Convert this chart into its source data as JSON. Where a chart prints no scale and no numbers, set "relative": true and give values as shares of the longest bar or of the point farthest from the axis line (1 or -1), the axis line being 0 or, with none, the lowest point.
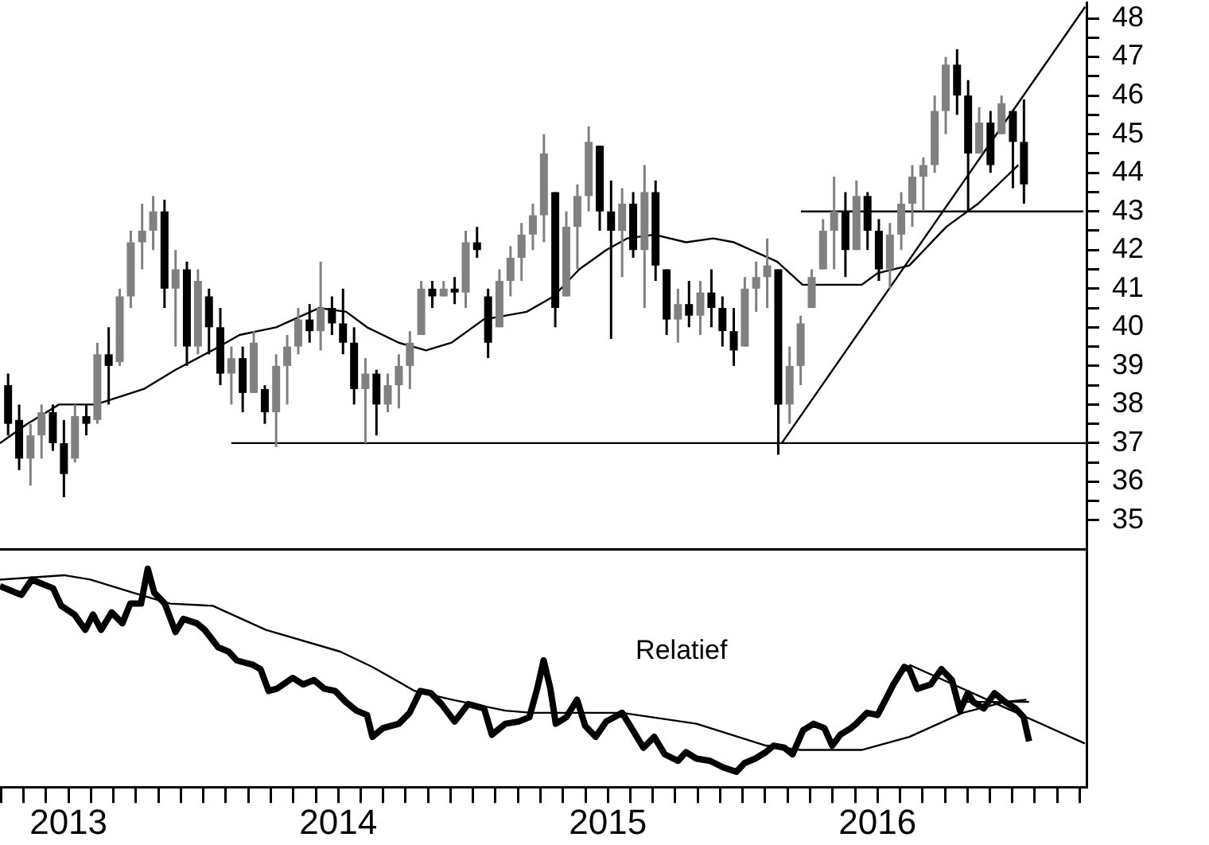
{
  "chart_data": [
    {
      "type": "candlestick",
      "tick_labels": "y",
      "xlim": [
        2012.746,
        2016.775
      ],
      "ylim": [
        34.25,
        48.4
      ],
      "yticks": [
        35,
        {
          "value": 35.5,
          "label": null
        },
        36,
        {
          "value": 36.5,
          "label": null
        },
        37,
        {
          "value": 37.5,
          "label": null
        },
        38,
        {
          "value": 38.5,
          "label": null
        },
        39,
        {
          "value": 39.5,
          "label": null
        },
        40,
        {
          "value": 40.5,
          "label": null
        },
        41,
        {
          "value": 41.5,
          "label": null
        },
        42,
        {
          "value": 42.5,
          "label": null
        },
        43,
        {
          "value": 43.5,
          "label": null
        },
        44,
        {
          "value": 44.5,
          "label": null
        },
        45,
        {
          "value": 45.5,
          "label": null
        },
        46,
        {
          "value": 46.5,
          "label": null
        },
        47,
        {
          "value": 47.5,
          "label": null
        },
        48
      ],
      "colors": [
        "#000000",
        "#000000",
        "#808080",
        "#808080",
        "#000000",
        "#000000",
        "#808080",
        "#000000",
        "#808080",
        "#000000",
        "#808080",
        "#808080",
        "#808080",
        "#808080",
        "#000000",
        "#808080",
        "#000000",
        "#808080",
        "#000000",
        "#000000",
        "#808080",
        "#000000",
        "#808080",
        "#000000",
        "#808080",
        "#808080",
        "#808080",
        "#000000",
        "#808080",
        "#000000",
        "#000000",
        "#000000",
        "#808080",
        "#000000",
        "#808080",
        "#808080",
        "#808080",
        "#808080",
        "#000000",
        "#808080",
        "#000000",
        "#808080",
        "#000000",
        "#000000",
        "#808080",
        "#808080",
        "#808080",
        "#808080",
        "#808080",
        "#000000",
        "#808080",
        "#808080",
        "#808080",
        "#000000",
        "#000000",
        "#808080",
        "#000000",
        "#808080",
        "#000000",
        "#000000",
        "#808080",
        "#000000",
        "#808080",
        "#000000",
        "#000000",
        "#000000",
        "#808080",
        "#808080",
        "#808080",
        "#000000",
        "#808080",
        "#808080",
        "#808080",
        "#808080",
        "#808080",
        "#000000",
        "#808080",
        "#000000",
        "#000000",
        "#808080",
        "#808080",
        "#808080",
        "#808080",
        "#808080",
        "#808080",
        "#000000",
        "#000000",
        "#808080",
        "#000000",
        "#808080",
        "#000000",
        "#000000"
      ],
      "x": [
        2012.776,
        2012.817,
        2012.859,
        2012.9,
        2012.942,
        2012.983,
        2013.024,
        2013.066,
        2013.107,
        2013.149,
        2013.19,
        2013.231,
        2013.273,
        2013.314,
        2013.356,
        2013.397,
        2013.439,
        2013.48,
        2013.521,
        2013.563,
        2013.604,
        2013.646,
        2013.687,
        2013.728,
        2013.77,
        2013.811,
        2013.852,
        2013.894,
        2013.935,
        2013.977,
        2014.018,
        2014.059,
        2014.101,
        2014.142,
        2014.184,
        2014.225,
        2014.266,
        2014.308,
        2014.349,
        2014.391,
        2014.432,
        2014.473,
        2014.515,
        2014.556,
        2014.598,
        2014.639,
        2014.68,
        2014.722,
        2014.763,
        2014.805,
        2014.846,
        2014.887,
        2014.929,
        2014.97,
        2015.012,
        2015.053,
        2015.094,
        2015.136,
        2015.177,
        2015.218,
        2015.26,
        2015.301,
        2015.343,
        2015.384,
        2015.425,
        2015.467,
        2015.508,
        2015.55,
        2015.591,
        2015.632,
        2015.674,
        2015.715,
        2015.756,
        2015.798,
        2015.839,
        2015.881,
        2015.922,
        2015.963,
        2016.005,
        2016.046,
        2016.088,
        2016.129,
        2016.17,
        2016.212,
        2016.253,
        2016.295,
        2016.336,
        2016.377,
        2016.419,
        2016.46,
        2016.502,
        2016.543
      ],
      "ohlc": [
        [
          38.5,
          38.8,
          37.2,
          37.5
        ],
        [
          37.6,
          38.0,
          36.3,
          36.6
        ],
        [
          36.6,
          37.5,
          35.9,
          37.2
        ],
        [
          37.2,
          38.0,
          36.6,
          37.8
        ],
        [
          37.8,
          38.0,
          36.8,
          37.0
        ],
        [
          37.0,
          37.6,
          35.6,
          36.2
        ],
        [
          36.6,
          38.0,
          36.5,
          37.7
        ],
        [
          37.7,
          38.0,
          37.2,
          37.5
        ],
        [
          37.6,
          39.6,
          37.5,
          39.3
        ],
        [
          39.3,
          40.0,
          38.0,
          39.0
        ],
        [
          39.1,
          41.0,
          39.0,
          40.8
        ],
        [
          40.8,
          42.5,
          40.5,
          42.2
        ],
        [
          42.2,
          43.2,
          41.5,
          42.5
        ],
        [
          42.5,
          43.4,
          42.0,
          43.0
        ],
        [
          43.0,
          43.3,
          40.5,
          41.0
        ],
        [
          41.0,
          42.0,
          39.5,
          41.5
        ],
        [
          41.5,
          41.7,
          39.0,
          39.5
        ],
        [
          39.5,
          41.5,
          39.3,
          41.2
        ],
        [
          40.8,
          41.0,
          39.3,
          40.0
        ],
        [
          40.0,
          40.5,
          38.5,
          38.8
        ],
        [
          38.8,
          39.5,
          38.0,
          39.2
        ],
        [
          39.2,
          39.5,
          37.8,
          38.3
        ],
        [
          38.3,
          39.9,
          38.3,
          39.6
        ],
        [
          38.4,
          38.5,
          37.5,
          37.8
        ],
        [
          37.8,
          39.3,
          36.9,
          39.0
        ],
        [
          39.0,
          39.8,
          38.0,
          39.5
        ],
        [
          39.5,
          40.5,
          39.3,
          40.2
        ],
        [
          40.2,
          40.6,
          39.6,
          39.9
        ],
        [
          39.9,
          41.7,
          39.4,
          40.5
        ],
        [
          40.5,
          40.8,
          39.8,
          40.1
        ],
        [
          40.1,
          41.0,
          39.3,
          39.6
        ],
        [
          39.6,
          40.0,
          38.0,
          38.4
        ],
        [
          38.4,
          39.2,
          37.0,
          38.8
        ],
        [
          38.8,
          38.9,
          37.2,
          38.0
        ],
        [
          38.0,
          38.8,
          37.8,
          38.5
        ],
        [
          38.5,
          39.3,
          37.9,
          39.0
        ],
        [
          39.0,
          39.9,
          38.4,
          39.6
        ],
        [
          39.8,
          41.2,
          39.8,
          41.0
        ],
        [
          41.0,
          41.2,
          40.5,
          40.8
        ],
        [
          40.8,
          41.2,
          40.8,
          41.0
        ],
        [
          41.0,
          41.3,
          40.6,
          40.9
        ],
        [
          40.9,
          42.5,
          40.5,
          42.2
        ],
        [
          42.2,
          42.6,
          41.8,
          42.0
        ],
        [
          40.8,
          41.0,
          39.2,
          39.6
        ],
        [
          40.0,
          41.5,
          40.0,
          41.2
        ],
        [
          41.2,
          42.1,
          40.8,
          41.8
        ],
        [
          41.8,
          42.7,
          41.2,
          42.4
        ],
        [
          42.4,
          43.2,
          42.0,
          42.9
        ],
        [
          42.9,
          45.0,
          42.2,
          44.5
        ],
        [
          43.5,
          43.5,
          40.0,
          40.5
        ],
        [
          40.8,
          43.0,
          40.8,
          42.6
        ],
        [
          42.6,
          43.7,
          41.5,
          43.4
        ],
        [
          43.4,
          45.2,
          43.0,
          44.8
        ],
        [
          44.7,
          44.7,
          42.5,
          43.0
        ],
        [
          43.0,
          43.8,
          39.7,
          42.5
        ],
        [
          42.5,
          43.6,
          41.3,
          43.2
        ],
        [
          43.2,
          43.5,
          41.8,
          42.0
        ],
        [
          42.0,
          44.2,
          40.5,
          43.5
        ],
        [
          43.5,
          43.8,
          41.2,
          41.6
        ],
        [
          41.5,
          41.5,
          39.8,
          40.2
        ],
        [
          40.2,
          41.0,
          39.6,
          40.6
        ],
        [
          40.6,
          41.2,
          40.0,
          40.3
        ],
        [
          40.3,
          41.2,
          39.8,
          40.9
        ],
        [
          40.9,
          41.5,
          40.0,
          40.5
        ],
        [
          40.5,
          40.8,
          39.5,
          39.9
        ],
        [
          39.9,
          40.5,
          39.0,
          39.4
        ],
        [
          39.5,
          41.3,
          39.5,
          41.0
        ],
        [
          41.0,
          41.7,
          40.4,
          41.3
        ],
        [
          41.3,
          42.3,
          40.5,
          41.6
        ],
        [
          41.5,
          41.5,
          36.7,
          38.0
        ],
        [
          38.0,
          39.5,
          37.5,
          39.0
        ],
        [
          39.0,
          40.3,
          38.5,
          40.1
        ],
        [
          40.5,
          41.5,
          40.5,
          41.3
        ],
        [
          41.5,
          42.8,
          41.5,
          42.5
        ],
        [
          42.5,
          43.9,
          41.5,
          43.0
        ],
        [
          43.0,
          43.5,
          41.3,
          42.0
        ],
        [
          42.0,
          43.8,
          42.0,
          43.4
        ],
        [
          43.4,
          43.5,
          42.0,
          42.5
        ],
        [
          42.5,
          42.8,
          41.2,
          41.5
        ],
        [
          41.5,
          42.7,
          41.0,
          42.4
        ],
        [
          42.4,
          43.5,
          42.0,
          43.2
        ],
        [
          43.2,
          44.2,
          42.6,
          43.9
        ],
        [
          43.9,
          44.4,
          43.0,
          44.2
        ],
        [
          44.2,
          46.0,
          44.0,
          45.6
        ],
        [
          45.6,
          47.0,
          45.0,
          46.8
        ],
        [
          46.8,
          47.2,
          45.5,
          46.0
        ],
        [
          46.0,
          46.4,
          43.0,
          44.5
        ],
        [
          44.5,
          45.7,
          44.5,
          45.3
        ],
        [
          45.3,
          45.6,
          44.0,
          44.2
        ],
        [
          45.0,
          46.0,
          45.0,
          45.8
        ],
        [
          45.6,
          45.6,
          43.6,
          44.8
        ],
        [
          44.8,
          45.9,
          43.2,
          43.7
        ]
      ],
      "series": [
        {
          "type": "line",
          "color": "#000000",
          "x": [
            2012.746,
            2012.847,
            2012.965,
            2013.101,
            2013.279,
            2013.397,
            2013.533,
            2013.634,
            2013.77,
            2013.929,
            2014.03,
            2014.107,
            2014.225,
            2014.326,
            2014.42,
            2014.539,
            2014.699,
            2014.799,
            2014.894,
            2014.994,
            2015.071,
            2015.172,
            2015.29,
            2015.391,
            2015.468,
            2015.628,
            2015.722,
            2015.823,
            2015.941,
            2016.0,
            2016.118,
            2016.255,
            2016.373,
            2016.522
          ],
          "values": [
            37.0,
            37.5,
            38.0,
            38.0,
            38.4,
            38.9,
            39.4,
            39.8,
            40.0,
            40.5,
            40.4,
            40.0,
            39.6,
            39.4,
            39.6,
            40.2,
            40.4,
            40.8,
            41.5,
            42.0,
            42.3,
            42.4,
            42.2,
            42.3,
            42.2,
            41.7,
            41.1,
            41.1,
            41.1,
            41.4,
            41.6,
            42.6,
            43.2,
            44.2
          ]
        },
        {
          "type": "line",
          "color": "#000000",
          "x": [
            2015.645,
            2016.77
          ],
          "values": [
            37.0,
            48.3
          ]
        },
        {
          "type": "line",
          "color": "#000000",
          "x": [
            2013.604,
            2016.775
          ],
          "values": [
            37,
            37
          ]
        },
        {
          "type": "line",
          "color": "#000000",
          "x": [
            2015.716,
            2016.763
          ],
          "values": [
            43,
            43
          ]
        }
      ]
    },
    {
      "type": "line",
      "relative": true,
      "tick_labels": "x",
      "xlim": [
        2012.746,
        2016.775
      ],
      "xticks": [
        {
          "value": 2012.75,
          "label": null
        },
        {
          "value": 2012.833,
          "label": null
        },
        {
          "value": 2012.917,
          "label": null
        },
        2013,
        {
          "value": 2013.083,
          "label": null
        },
        {
          "value": 2013.167,
          "label": null
        },
        {
          "value": 2013.25,
          "label": null
        },
        {
          "value": 2013.333,
          "label": null
        },
        {
          "value": 2013.417,
          "label": null
        },
        {
          "value": 2013.5,
          "label": null
        },
        {
          "value": 2013.583,
          "label": null
        },
        {
          "value": 2013.667,
          "label": null
        },
        {
          "value": 2013.75,
          "label": null
        },
        {
          "value": 2013.833,
          "label": null
        },
        {
          "value": 2013.917,
          "label": null
        },
        2014,
        {
          "value": 2014.083,
          "label": null
        },
        {
          "value": 2014.167,
          "label": null
        },
        {
          "value": 2014.25,
          "label": null
        },
        {
          "value": 2014.333,
          "label": null
        },
        {
          "value": 2014.417,
          "label": null
        },
        {
          "value": 2014.5,
          "label": null
        },
        {
          "value": 2014.583,
          "label": null
        },
        {
          "value": 2014.667,
          "label": null
        },
        {
          "value": 2014.75,
          "label": null
        },
        {
          "value": 2014.833,
          "label": null
        },
        {
          "value": 2014.917,
          "label": null
        },
        2015,
        {
          "value": 2015.083,
          "label": null
        },
        {
          "value": 2015.167,
          "label": null
        },
        {
          "value": 2015.25,
          "label": null
        },
        {
          "value": 2015.333,
          "label": null
        },
        {
          "value": 2015.417,
          "label": null
        },
        {
          "value": 2015.5,
          "label": null
        },
        {
          "value": 2015.583,
          "label": null
        },
        {
          "value": 2015.667,
          "label": null
        },
        {
          "value": 2015.75,
          "label": null
        },
        {
          "value": 2015.833,
          "label": null
        },
        {
          "value": 2015.917,
          "label": null
        },
        2016,
        {
          "value": 2016.083,
          "label": null
        },
        {
          "value": 2016.167,
          "label": null
        },
        {
          "value": 2016.25,
          "label": null
        },
        {
          "value": 2016.333,
          "label": null
        },
        {
          "value": 2016.417,
          "label": null
        },
        {
          "value": 2016.5,
          "label": null
        },
        {
          "value": 2016.583,
          "label": null
        },
        {
          "value": 2016.667,
          "label": null
        },
        {
          "value": 2016.75,
          "label": null
        }
      ],
      "annotations": [
        "Relatief"
      ],
      "series": [
        {
          "color": "#000000",
          "x": [
            2012.746,
            2012.785,
            2012.825,
            2012.864,
            2012.943,
            2012.973,
            2013.022,
            2013.062,
            2013.091,
            2013.121,
            2013.16,
            2013.2,
            2013.229,
            2013.269,
            2013.294,
            2013.318,
            2013.357,
            2013.397,
            2013.426,
            2013.476,
            2013.505,
            2013.555,
            2013.594,
            2013.624,
            2013.653,
            2013.683,
            2013.712,
            2013.742,
            2013.772,
            2013.831,
            2013.87,
            2013.91,
            2013.949,
            2013.989,
            2014.028,
            2014.068,
            2014.107,
            2014.127,
            2014.166,
            2014.225,
            2014.265,
            2014.304,
            2014.344,
            2014.383,
            2014.432,
            2014.482,
            2014.541,
            2014.57,
            2014.62,
            2014.669,
            2014.709,
            2014.738,
            2014.762,
            2014.787,
            2014.807,
            2014.846,
            2014.886,
            2014.916,
            2014.955,
            2014.994,
            2015.053,
            2015.093,
            2015.132,
            2015.172,
            2015.211,
            2015.26,
            2015.29,
            2015.329,
            2015.379,
            2015.428,
            2015.477,
            2015.507,
            2015.546,
            2015.586,
            2015.615,
            2015.655,
            2015.685,
            2015.724,
            2015.763,
            2015.803,
            2015.832,
            2015.862,
            2015.901,
            2015.921,
            2015.961,
            2016.0,
            2016.03,
            2016.059,
            2016.099,
            2016.118,
            2016.148,
            2016.197,
            2016.237,
            2016.276,
            2016.306,
            2016.335,
            2016.355,
            2016.394,
            2016.434,
            2016.473,
            2016.512,
            2016.542,
            2016.562
          ],
          "values": [
            0.92,
            0.9,
            0.88,
            0.95,
            0.91,
            0.83,
            0.79,
            0.72,
            0.79,
            0.72,
            0.8,
            0.75,
            0.84,
            0.84,
            1.0,
            0.89,
            0.84,
            0.71,
            0.77,
            0.75,
            0.72,
            0.64,
            0.62,
            0.58,
            0.57,
            0.56,
            0.54,
            0.44,
            0.45,
            0.5,
            0.47,
            0.49,
            0.45,
            0.44,
            0.39,
            0.35,
            0.33,
            0.23,
            0.27,
            0.29,
            0.34,
            0.44,
            0.43,
            0.38,
            0.3,
            0.38,
            0.36,
            0.24,
            0.29,
            0.3,
            0.32,
            0.45,
            0.58,
            0.45,
            0.29,
            0.32,
            0.4,
            0.28,
            0.23,
            0.3,
            0.34,
            0.26,
            0.18,
            0.23,
            0.15,
            0.12,
            0.16,
            0.13,
            0.12,
            0.09,
            0.07,
            0.11,
            0.13,
            0.16,
            0.19,
            0.18,
            0.15,
            0.26,
            0.29,
            0.27,
            0.19,
            0.24,
            0.27,
            0.29,
            0.34,
            0.33,
            0.4,
            0.47,
            0.55,
            0.54,
            0.45,
            0.47,
            0.54,
            0.49,
            0.35,
            0.43,
            0.39,
            0.36,
            0.43,
            0.39,
            0.36,
            0.32,
            0.21
          ]
        },
        {
          "color": "#000000",
          "x": [
            2012.746,
            2012.983,
            2013.081,
            2013.239,
            2013.377,
            2013.535,
            2013.732,
            2014.008,
            2014.127,
            2014.284,
            2014.422,
            2014.62,
            2014.718,
            2014.995,
            2015.053,
            2015.329,
            2015.586,
            2015.714,
            2015.941,
            2016.118,
            2016.316,
            2016.473,
            2016.552
          ],
          "values": [
            0.95,
            0.97,
            0.95,
            0.89,
            0.84,
            0.83,
            0.72,
            0.62,
            0.55,
            0.44,
            0.4,
            0.35,
            0.34,
            0.34,
            0.34,
            0.29,
            0.19,
            0.17,
            0.17,
            0.23,
            0.34,
            0.39,
            0.4
          ]
        },
        {
          "color": "#000000",
          "x": [
            2016.118,
            2016.769
          ],
          "values": [
            0.56,
            0.2
          ]
        },
        {
          "color": "#000000",
          "x": [
            2016.296,
            2016.562
          ],
          "values": [
            0.39,
            0.39
          ]
        }
      ]
    }
  ]
}
